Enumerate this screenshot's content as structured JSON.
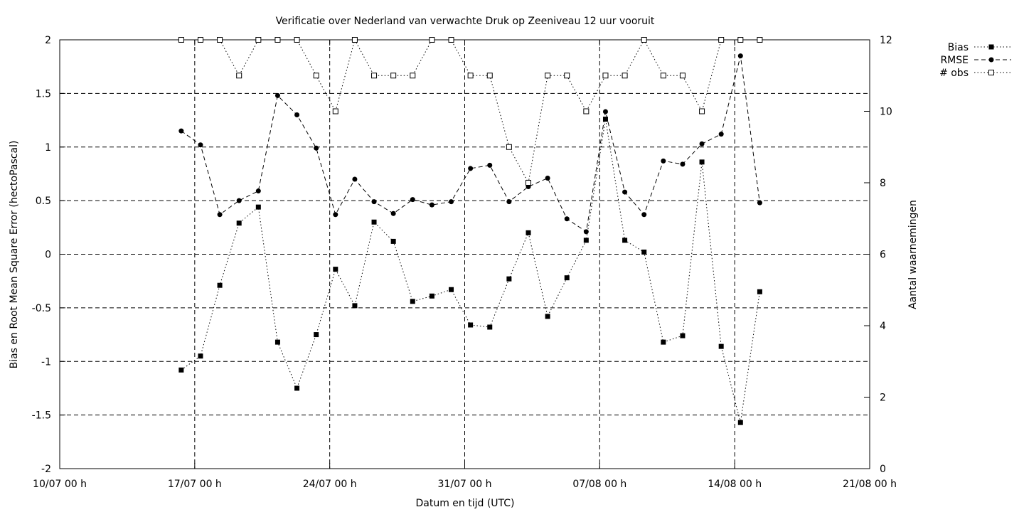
{
  "chart_data": {
    "type": "line",
    "title": "Verificatie over Nederland van verwachte Druk op Zeeniveau 12 uur vooruit",
    "xlabel": "Datum en tijd (UTC)",
    "ylabel": "Bias en Root Mean Square Error (hectoPascal)",
    "y2label": "Aantal waarnemingen",
    "x_unit": "days from 10/07 00 h",
    "xlim": [
      0,
      42
    ],
    "ylim": [
      -2,
      2
    ],
    "y2lim": [
      0,
      12
    ],
    "x_ticks": [
      {
        "value": 0,
        "label": "10/07 00 h"
      },
      {
        "value": 7,
        "label": "17/07 00 h"
      },
      {
        "value": 14,
        "label": "24/07 00 h"
      },
      {
        "value": 21,
        "label": "31/07 00 h"
      },
      {
        "value": 28,
        "label": "07/08 00 h"
      },
      {
        "value": 35,
        "label": "14/08 00 h"
      },
      {
        "value": 42,
        "label": "21/08 00 h"
      }
    ],
    "y_ticks": [
      -2,
      -1.5,
      -1,
      -0.5,
      0,
      0.5,
      1,
      1.5,
      2
    ],
    "y_tick_labels": [
      "-2",
      "-1.5",
      "-1",
      "-0.5",
      "0",
      "0.5",
      "1",
      "1.5",
      "2"
    ],
    "y2_ticks": [
      0,
      2,
      4,
      6,
      8,
      10,
      12
    ],
    "y2_tick_labels": [
      "0",
      "2",
      "4",
      "6",
      "8",
      "10",
      "12"
    ],
    "grid": true,
    "legend_position": "top-right-outside",
    "x": [
      6.3,
      7.3,
      8.3,
      9.3,
      10.3,
      11.3,
      12.3,
      13.3,
      14.3,
      15.3,
      16.3,
      17.3,
      18.3,
      19.3,
      20.3,
      21.3,
      22.3,
      23.3,
      24.3,
      25.3,
      26.3,
      27.3,
      28.3,
      29.3,
      30.3,
      31.3,
      32.3,
      33.3,
      34.3,
      35.3,
      36.3
    ],
    "series": [
      {
        "name": "Bias",
        "axis": "left",
        "marker": "filled-square",
        "line": "dotted",
        "values": [
          -1.08,
          -0.95,
          -0.29,
          0.29,
          0.44,
          -0.82,
          -1.25,
          -0.75,
          -0.14,
          -0.48,
          0.3,
          0.12,
          -0.44,
          -0.39,
          -0.33,
          -0.66,
          -0.68,
          -0.23,
          0.2,
          -0.58,
          -0.22,
          0.13,
          1.26,
          0.13,
          0.02,
          -0.82,
          -0.76,
          0.86,
          -0.86,
          -1.57,
          -0.35
        ]
      },
      {
        "name": "RMSE",
        "axis": "left",
        "marker": "filled-circle",
        "line": "dashed",
        "values": [
          1.15,
          1.02,
          0.37,
          0.5,
          0.59,
          1.48,
          1.3,
          0.99,
          0.37,
          0.7,
          0.49,
          0.38,
          0.51,
          0.46,
          0.49,
          0.8,
          0.83,
          0.49,
          0.63,
          0.71,
          0.33,
          0.21,
          1.33,
          0.58,
          0.37,
          0.87,
          0.84,
          1.03,
          1.12,
          1.85,
          0.48
        ]
      },
      {
        "name": "# obs",
        "axis": "right",
        "marker": "open-square",
        "line": "dotted",
        "values": [
          12,
          12,
          12,
          11,
          12,
          12,
          12,
          11,
          10,
          12,
          11,
          11,
          11,
          12,
          12,
          11,
          11,
          9,
          8,
          11,
          11,
          10,
          11,
          11,
          12,
          11,
          11,
          10,
          12,
          12,
          12
        ]
      }
    ]
  }
}
